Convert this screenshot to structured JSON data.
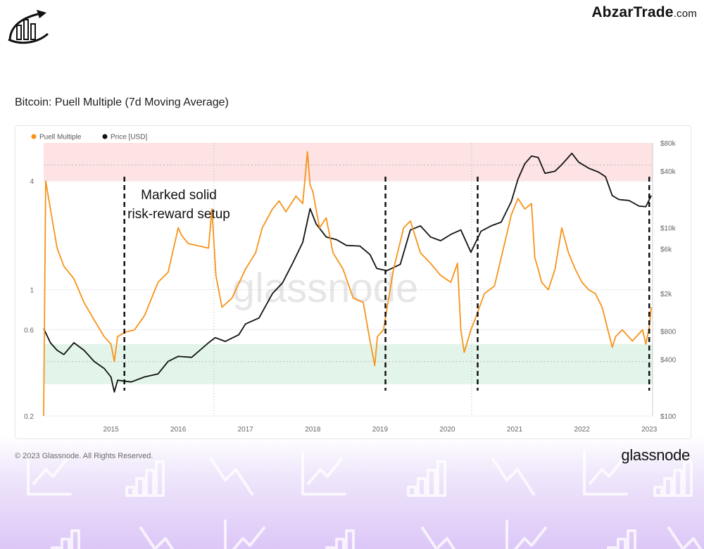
{
  "header": {
    "brand_main": "AbzarTrade",
    "brand_domain": ".com"
  },
  "chart_data": {
    "type": "line",
    "title": "Bitcoin: Puell Multiple (7d Moving Average)",
    "legend": [
      "Puell Multiple",
      "Price [USD]"
    ],
    "legend_placement": "top-left",
    "colors": {
      "puell": "#f7931a",
      "price": "#111111",
      "top_band": "#fde3e3",
      "bottom_band": "#e3f5ea"
    },
    "x_ticks": [
      "2015",
      "2016",
      "2017",
      "2018",
      "2019",
      "2020",
      "2021",
      "2022",
      "2023"
    ],
    "x_range": [
      2014.0,
      2023.05
    ],
    "y_left": {
      "scale": "log",
      "range": [
        0.2,
        6.5
      ],
      "ticks": [
        "0.2",
        "0.6",
        "1",
        "4"
      ],
      "tick_values": [
        0.2,
        0.6,
        1,
        4
      ]
    },
    "y_right": {
      "scale": "log",
      "range": [
        100,
        80000
      ],
      "ticks": [
        "$100",
        "$400",
        "$800",
        "$2k",
        "$6k",
        "$10k",
        "$40k",
        "$80k"
      ],
      "tick_values": [
        100,
        400,
        800,
        2000,
        6000,
        10000,
        40000,
        80000
      ]
    },
    "zones": {
      "top_band_left": [
        4,
        6.5
      ],
      "bottom_band_left": [
        0.3,
        0.5
      ]
    },
    "halving_lines_x": [
      2016.53,
      2020.36
    ],
    "series": [
      {
        "name": "Puell Multiple",
        "axis": "left",
        "x": [
          2014.0,
          2014.03,
          2014.1,
          2014.2,
          2014.3,
          2014.45,
          2014.6,
          2014.75,
          2014.9,
          2015.0,
          2015.05,
          2015.1,
          2015.2,
          2015.35,
          2015.5,
          2015.7,
          2015.85,
          2016.0,
          2016.05,
          2016.15,
          2016.3,
          2016.45,
          2016.5,
          2016.56,
          2016.65,
          2016.8,
          2017.0,
          2017.15,
          2017.25,
          2017.4,
          2017.5,
          2017.6,
          2017.75,
          2017.85,
          2017.92,
          2017.96,
          2018.0,
          2018.1,
          2018.2,
          2018.3,
          2018.45,
          2018.6,
          2018.75,
          2018.85,
          2018.92,
          2018.96,
          2019.05,
          2019.2,
          2019.35,
          2019.45,
          2019.6,
          2019.75,
          2019.9,
          2020.05,
          2020.15,
          2020.2,
          2020.25,
          2020.35,
          2020.42,
          2020.55,
          2020.7,
          2020.85,
          2020.95,
          2021.05,
          2021.15,
          2021.25,
          2021.3,
          2021.35,
          2021.4,
          2021.5,
          2021.6,
          2021.7,
          2021.8,
          2021.9,
          2022.0,
          2022.1,
          2022.2,
          2022.3,
          2022.45,
          2022.5,
          2022.6,
          2022.75,
          2022.9,
          2022.95,
          2023.0,
          2023.03
        ],
        "y": [
          0.2,
          4.0,
          2.8,
          1.7,
          1.35,
          1.15,
          0.85,
          0.68,
          0.55,
          0.5,
          0.4,
          0.55,
          0.58,
          0.6,
          0.72,
          1.1,
          1.25,
          2.2,
          2.0,
          1.8,
          1.75,
          1.7,
          2.8,
          1.2,
          0.8,
          0.9,
          1.3,
          1.6,
          2.2,
          2.8,
          3.1,
          2.7,
          3.3,
          3.0,
          5.8,
          3.8,
          3.5,
          2.2,
          2.5,
          1.6,
          1.3,
          0.9,
          0.85,
          0.52,
          0.38,
          0.55,
          0.6,
          1.3,
          2.2,
          2.4,
          1.6,
          1.4,
          1.2,
          1.1,
          1.4,
          0.6,
          0.45,
          0.6,
          0.7,
          0.95,
          1.05,
          1.8,
          2.6,
          3.2,
          2.8,
          3.0,
          1.5,
          1.3,
          1.1,
          1.0,
          1.3,
          2.2,
          1.6,
          1.3,
          1.1,
          1.0,
          0.95,
          0.8,
          0.48,
          0.55,
          0.6,
          0.52,
          0.6,
          0.5,
          0.62,
          0.8
        ]
      },
      {
        "name": "Price [USD]",
        "axis": "right",
        "x": [
          2014.0,
          2014.1,
          2014.2,
          2014.3,
          2014.45,
          2014.6,
          2014.75,
          2014.9,
          2015.0,
          2015.05,
          2015.1,
          2015.3,
          2015.5,
          2015.7,
          2015.85,
          2016.0,
          2016.2,
          2016.45,
          2016.55,
          2016.7,
          2016.9,
          2017.0,
          2017.2,
          2017.4,
          2017.55,
          2017.7,
          2017.85,
          2017.96,
          2018.05,
          2018.2,
          2018.35,
          2018.5,
          2018.7,
          2018.85,
          2018.95,
          2019.1,
          2019.3,
          2019.45,
          2019.6,
          2019.75,
          2019.9,
          2020.05,
          2020.2,
          2020.35,
          2020.5,
          2020.65,
          2020.8,
          2020.95,
          2021.05,
          2021.15,
          2021.25,
          2021.35,
          2021.45,
          2021.6,
          2021.7,
          2021.85,
          2021.95,
          2022.1,
          2022.25,
          2022.35,
          2022.45,
          2022.55,
          2022.7,
          2022.85,
          2022.95,
          2023.03
        ],
        "y": [
          850,
          600,
          500,
          450,
          600,
          500,
          380,
          320,
          260,
          180,
          240,
          230,
          260,
          280,
          380,
          430,
          420,
          600,
          680,
          620,
          730,
          950,
          1100,
          2000,
          2600,
          4200,
          7000,
          16000,
          11000,
          8000,
          7500,
          6500,
          6400,
          5200,
          3700,
          3500,
          4100,
          9500,
          10500,
          8000,
          7300,
          8500,
          9500,
          5500,
          9200,
          10500,
          11500,
          19000,
          33000,
          48000,
          58000,
          56000,
          38000,
          40000,
          47000,
          62000,
          50000,
          43000,
          39000,
          35000,
          22000,
          20000,
          19500,
          17000,
          16800,
          22000
        ]
      }
    ],
    "annotation": [
      "Marked solid",
      "risk-reward setup"
    ],
    "marked_lines_x": [
      2015.2,
      2019.08,
      2020.45,
      2023.0
    ],
    "watermark": "glassnode"
  },
  "footer": {
    "copyright": "© 2023 Glassnode. All Rights Reserved.",
    "brand": "glassnode"
  }
}
